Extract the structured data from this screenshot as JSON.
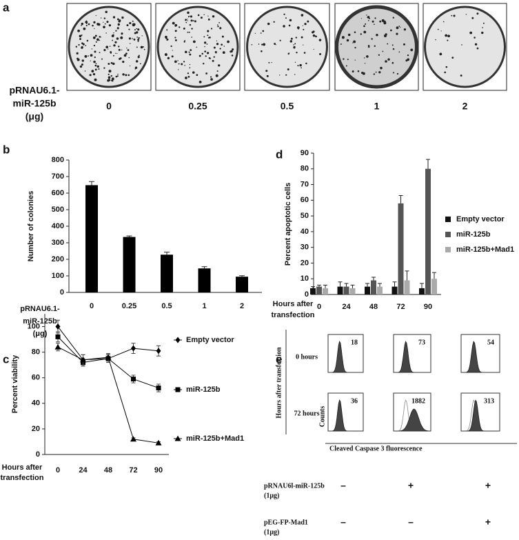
{
  "panel_a": {
    "label": "a",
    "row_label": [
      "pRNAU6.1-",
      "miR-125b",
      "(μg)"
    ],
    "doses": [
      "0",
      "0.25",
      "0.5",
      "1",
      "2"
    ]
  },
  "chart_data": [
    {
      "type": "bar",
      "panel": "b",
      "y_label": "Number of colonies",
      "x_label": [
        "pRNAU6.1-",
        "miR-125b",
        "(μg)"
      ],
      "categories": [
        "0",
        "0.25",
        "0.5",
        "1",
        "2"
      ],
      "values": [
        648,
        335,
        228,
        145,
        95
      ],
      "errors": [
        22,
        6,
        15,
        10,
        6
      ],
      "color": "#000000",
      "ylim": [
        0,
        800
      ],
      "yticks": [
        0,
        100,
        200,
        300,
        400,
        500,
        600,
        700,
        800
      ]
    },
    {
      "type": "line",
      "panel": "c",
      "y_label": "Percent viability",
      "x_label": [
        "Hours after",
        "transfection"
      ],
      "categories": [
        "0",
        "24",
        "48",
        "72",
        "90"
      ],
      "series": [
        {
          "name": "Empty vector",
          "color": "#000000",
          "marker": "diamond",
          "values": [
            100,
            74,
            75,
            83,
            81
          ],
          "errors": [
            5,
            4,
            3,
            4,
            4
          ]
        },
        {
          "name": "miR-125b",
          "color": "#000000",
          "marker": "square",
          "values": [
            92,
            72,
            75,
            59,
            52
          ],
          "errors": [
            4,
            3,
            3,
            3,
            3
          ]
        },
        {
          "name": "miR-125b+Mad1",
          "color": "#000000",
          "marker": "triangle",
          "values": [
            84,
            74,
            76,
            12,
            9
          ],
          "errors": [
            3,
            4,
            3,
            1,
            1
          ]
        }
      ],
      "ylim": [
        0,
        110
      ],
      "yticks": [
        0,
        20,
        40,
        60,
        80,
        100
      ]
    },
    {
      "type": "bar",
      "panel": "d",
      "y_label": "Percent apoptotic cells",
      "x_label": [
        "Hours after",
        "transfection"
      ],
      "categories": [
        "0",
        "24",
        "48",
        "72",
        "90"
      ],
      "series": [
        {
          "name": "Empty vector",
          "color": "#111111",
          "values": [
            4,
            5,
            5,
            5,
            4
          ],
          "errors": [
            1,
            3,
            2,
            3,
            3
          ]
        },
        {
          "name": "miR-125b",
          "color": "#555555",
          "values": [
            5,
            5,
            9,
            58,
            80
          ],
          "errors": [
            1,
            2,
            2,
            5,
            6
          ]
        },
        {
          "name": "miR-125b+Mad1",
          "color": "#aaaaaa",
          "values": [
            4,
            4,
            5,
            9,
            10
          ],
          "errors": [
            2,
            2,
            2,
            6,
            4
          ]
        }
      ],
      "ylim": [
        0,
        90
      ],
      "yticks": [
        0,
        10,
        20,
        30,
        40,
        50,
        60,
        70,
        80,
        90
      ]
    }
  ],
  "panel_e": {
    "label": "e",
    "y_label": "Hours after transfection",
    "rows": [
      "0 hours",
      "72 hours"
    ],
    "counts_label": "Counts",
    "x_label": "Cleaved Caspase 3 fluorescence",
    "values": [
      [
        18,
        73,
        54
      ],
      [
        36,
        1882,
        313
      ]
    ],
    "conditions": [
      {
        "name": [
          "pRNAU6l-miR-125b",
          "(1μg)"
        ],
        "signs": [
          "–",
          "+",
          "+"
        ]
      },
      {
        "name": [
          "pEG-FP-Mad1",
          "(1μg)"
        ],
        "signs": [
          "–",
          "–",
          "+"
        ]
      }
    ]
  }
}
